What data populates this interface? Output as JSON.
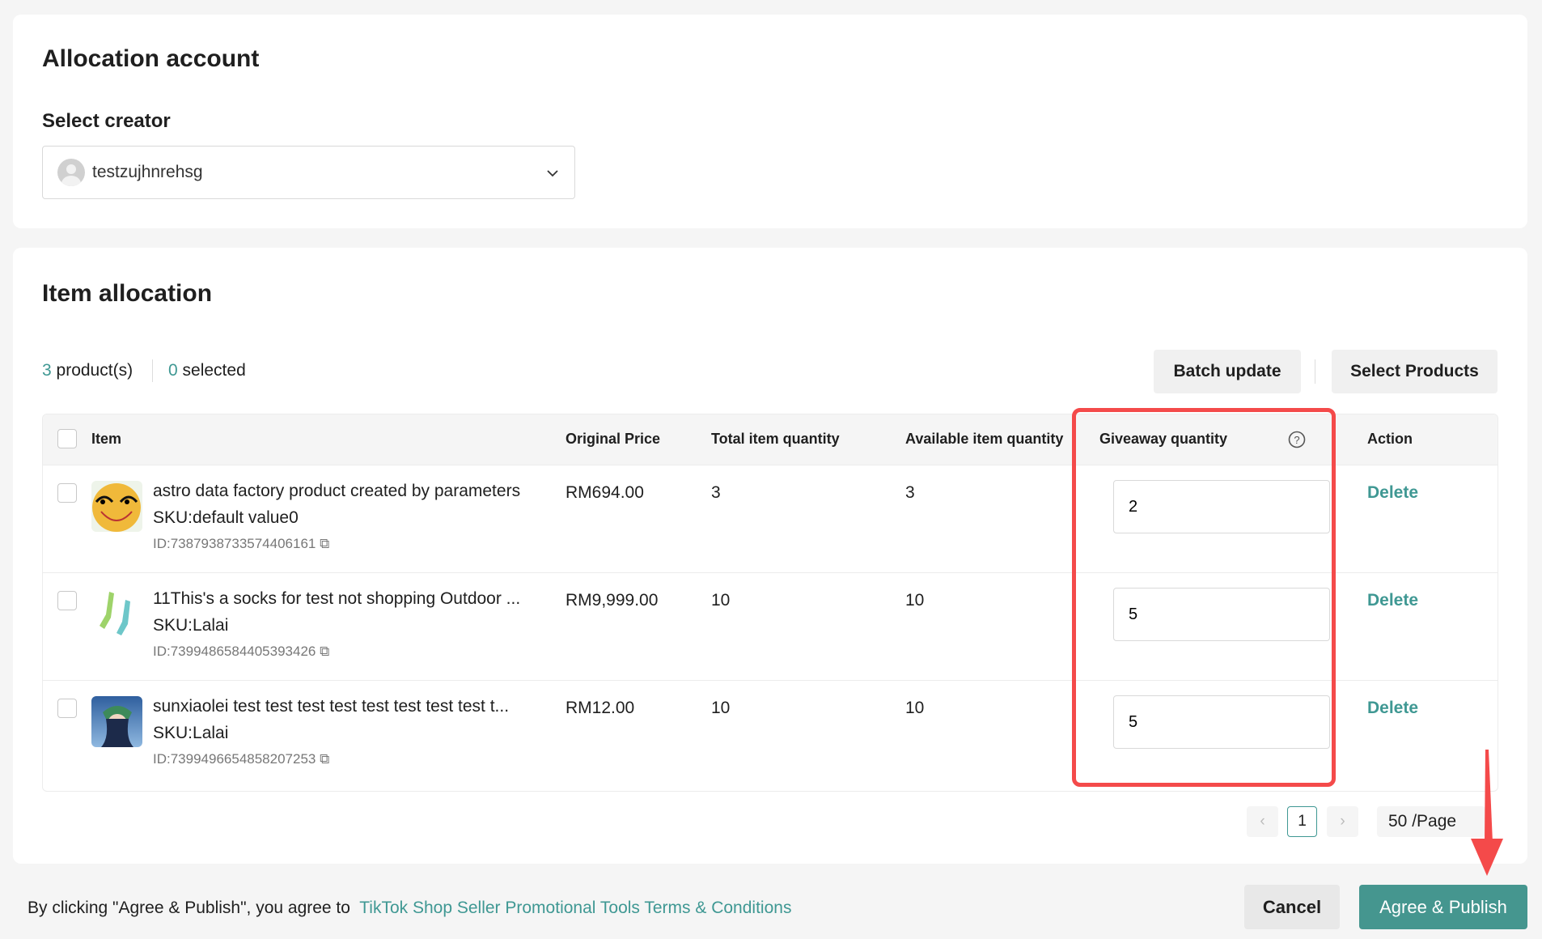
{
  "allocation": {
    "title": "Allocation account",
    "select_label": "Select creator",
    "creator": "testzujhnrehsg"
  },
  "items": {
    "title": "Item allocation",
    "product_count": "3",
    "product_label": "product(s)",
    "selected_count": "0",
    "selected_label": "selected",
    "batch_update": "Batch update",
    "select_products": "Select Products",
    "columns": {
      "item": "Item",
      "price": "Original Price",
      "total": "Total item quantity",
      "available": "Available item quantity",
      "giveaway": "Giveaway quantity",
      "action": "Action"
    },
    "rows": [
      {
        "name": "astro data factory product created by parameters",
        "sku": "SKU:default value0",
        "id": "ID:7387938733574406161",
        "price": "RM694.00",
        "total": "3",
        "available": "3",
        "giveaway": "2",
        "action": "Delete"
      },
      {
        "name": "11This's a socks for test not shopping Outdoor ...",
        "sku": "SKU:Lalai",
        "id": "ID:7399486584405393426",
        "price": "RM9,999.00",
        "total": "10",
        "available": "10",
        "giveaway": "5",
        "action": "Delete"
      },
      {
        "name": "sunxiaolei test test test test test test test test t...",
        "sku": "SKU:Lalai",
        "id": "ID:7399496654858207253",
        "price": "RM12.00",
        "total": "10",
        "available": "10",
        "giveaway": "5",
        "action": "Delete"
      }
    ],
    "pagination": {
      "page": "1",
      "page_size": "50 /Page"
    }
  },
  "footer": {
    "text": "By clicking \"Agree & Publish\", you agree to",
    "link": "TikTok Shop Seller Promotional Tools Terms & Conditions",
    "cancel": "Cancel",
    "publish": "Agree & Publish"
  },
  "colors": {
    "accent": "#3f9893",
    "highlight": "#f44a4a"
  }
}
